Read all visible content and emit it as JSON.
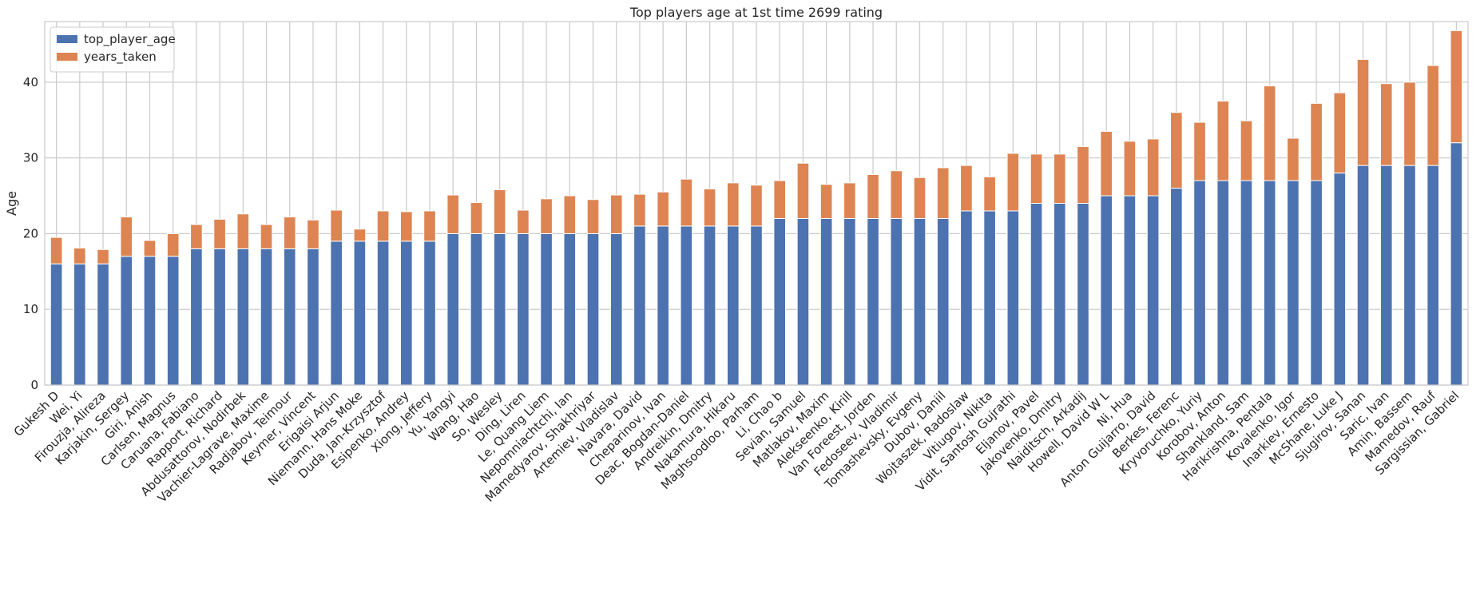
{
  "chart_data": {
    "type": "bar",
    "stacked": true,
    "title": "Top players age at 1st time 2699 rating",
    "xlabel": "",
    "ylabel": "Age",
    "ylim": [
      0,
      48
    ],
    "yticks": [
      0,
      10,
      20,
      30,
      40
    ],
    "grid": true,
    "legend_position": "top-left",
    "categories": [
      "Gukesh D",
      "Wei, Yi",
      "Firouzja, Alireza",
      "Karjakin, Sergey",
      "Giri, Anish",
      "Carlsen, Magnus",
      "Caruana, Fabiano",
      "Rapport, Richard",
      "Abdusattorov, Nodirbek",
      "Vachier-Lagrave, Maxime",
      "Radjabov, Teimour",
      "Keymer, Vincent",
      "Erigaisi Arjun",
      "Niemann, Hans Moke",
      "Duda, Jan-Krzysztof",
      "Esipenko, Andrey",
      "Xiong, Jeffery",
      "Yu, Yangyi",
      "Wang, Hao",
      "So, Wesley",
      "Ding, Liren",
      "Le, Quang Liem",
      "Nepomniachtchi, Ian",
      "Mamedyarov, Shakhriyar",
      "Artemiev, Vladislav",
      "Navara, David",
      "Cheparinov, Ivan",
      "Deac, Bogdan-Daniel",
      "Andreikin, Dmitry",
      "Nakamura, Hikaru",
      "Maghsoodloo, Parham",
      "Li, Chao b",
      "Sevian, Samuel",
      "Matlakov, Maxim",
      "Alekseenko, Kirill",
      "Van Foreest, Jorden",
      "Fedoseev, Vladimir",
      "Tomashevsky, Evgeny",
      "Dubov, Daniil",
      "Wojtaszek, Radoslaw",
      "Vitiugov, Nikita",
      "Vidit, Santosh Gujrathi",
      "Eljanov, Pavel",
      "Jakovenko, Dmitry",
      "Naiditsch, Arkadij",
      "Howell, David W L",
      "Ni, Hua",
      "Anton Guijarro, David",
      "Berkes, Ferenc",
      "Kryvoruchko, Yuriy",
      "Korobov, Anton",
      "Shankland, Sam",
      "Harikrishna, Pentala",
      "Kovalenko, Igor",
      "Inarkiev, Ernesto",
      "McShane, Luke J",
      "Sjugirov, Sanan",
      "Saric, Ivan",
      "Amin, Bassem",
      "Mamedov, Rauf",
      "Sargissian, Gabriel"
    ],
    "series": [
      {
        "name": "top_player_age",
        "color": "#4c72b0",
        "values": [
          16,
          16,
          16,
          17,
          17,
          17,
          18,
          18,
          18,
          18,
          18,
          18,
          19,
          19,
          19,
          19,
          19,
          20,
          20,
          20,
          20,
          20,
          20,
          20,
          20,
          21,
          21,
          21,
          21,
          21,
          21,
          22,
          22,
          22,
          22,
          22,
          22,
          22,
          22,
          23,
          23,
          23,
          24,
          24,
          24,
          25,
          25,
          25,
          26,
          27,
          27,
          27,
          27,
          27,
          27,
          28,
          29,
          29,
          29,
          29,
          32
        ]
      },
      {
        "name": "years_taken",
        "color": "#dd8452",
        "values": [
          3.5,
          2.1,
          1.9,
          5.2,
          2.1,
          3.0,
          3.2,
          3.9,
          4.6,
          3.2,
          4.2,
          3.8,
          4.1,
          1.6,
          4.0,
          3.9,
          4.0,
          5.1,
          4.1,
          5.8,
          3.1,
          4.6,
          5.0,
          4.5,
          5.1,
          4.2,
          4.5,
          6.2,
          4.9,
          5.7,
          5.4,
          5.0,
          7.3,
          4.5,
          4.7,
          5.8,
          6.3,
          5.4,
          6.7,
          6.0,
          4.5,
          7.6,
          6.5,
          6.5,
          7.5,
          8.5,
          7.2,
          7.5,
          10.0,
          7.7,
          10.5,
          7.9,
          12.5,
          5.6,
          10.2,
          10.6,
          14.0,
          10.8,
          11.0,
          13.2,
          14.8
        ]
      }
    ]
  }
}
